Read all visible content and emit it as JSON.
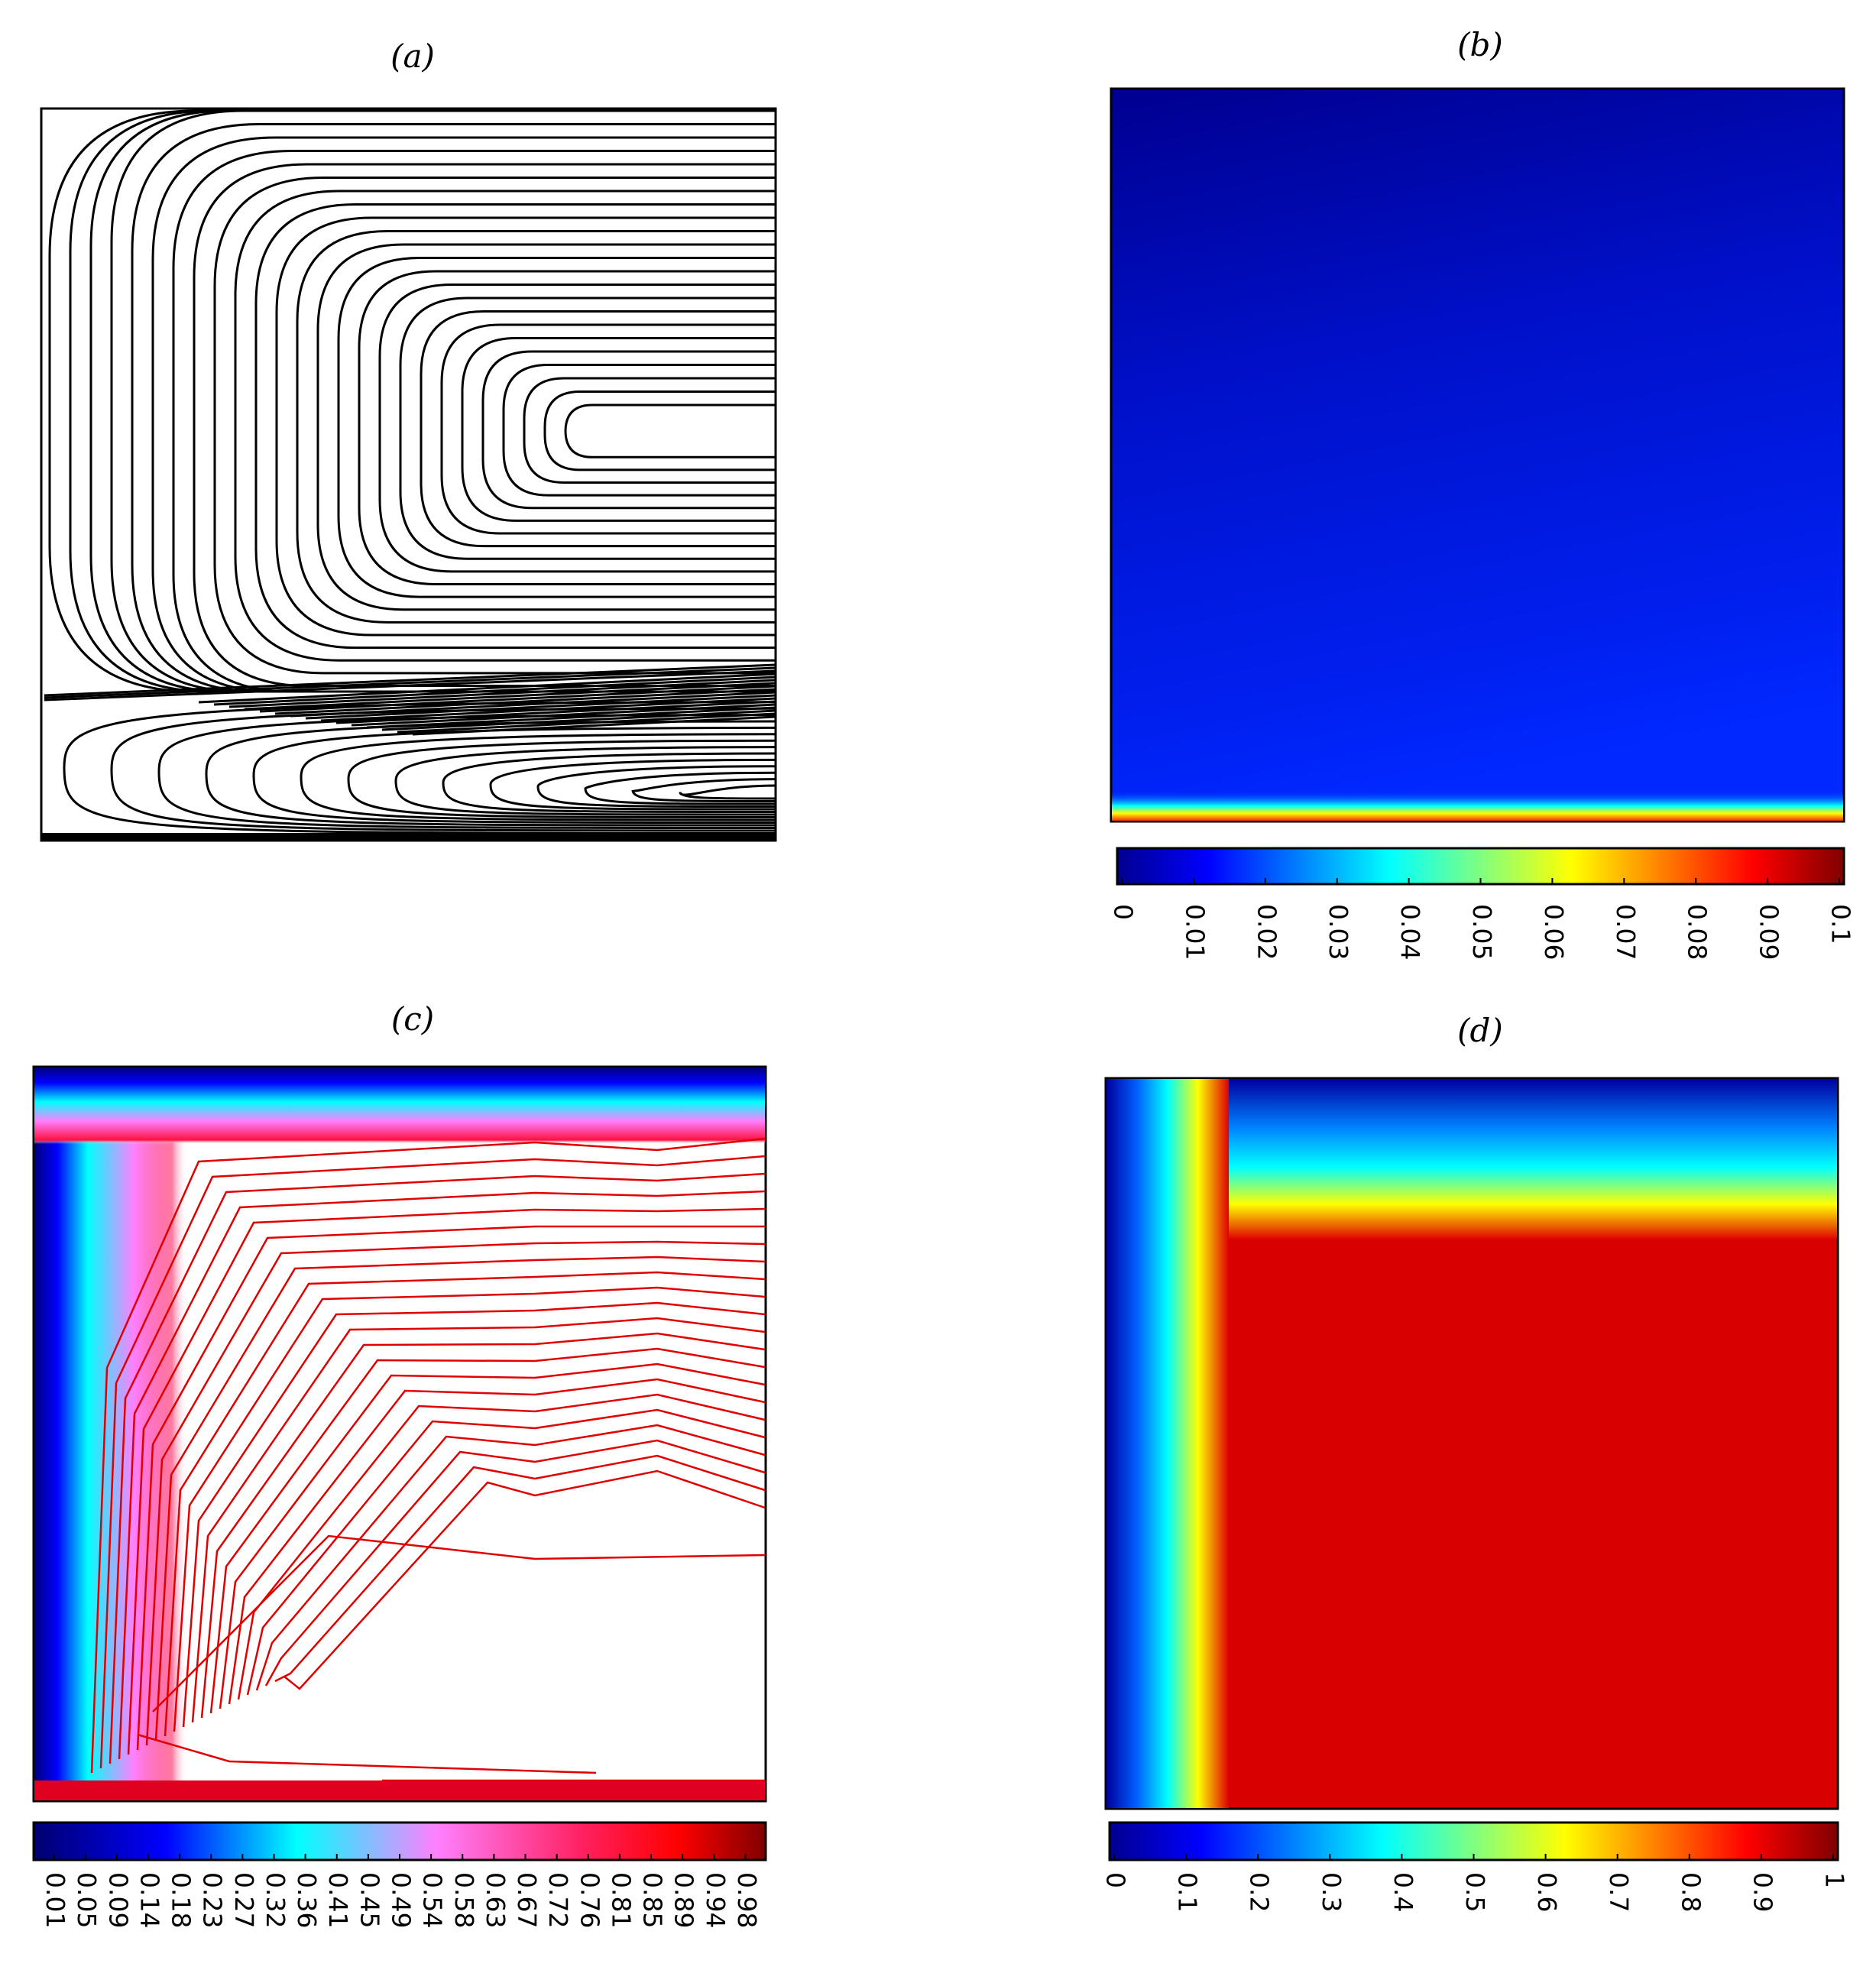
{
  "panels": [
    {
      "label": "(a)"
    },
    {
      "label": "(b)",
      "colorbar": {
        "ticks": [
          0,
          0.01,
          0.02,
          0.03,
          0.04,
          0.05,
          0.06,
          0.07,
          0.08,
          0.09,
          0.1
        ]
      }
    },
    {
      "label": "(c)",
      "colorbar": {
        "ticks": [
          0.01,
          0.05,
          0.09,
          0.14,
          0.18,
          0.23,
          0.27,
          0.32,
          0.36,
          0.41,
          0.45,
          0.49,
          0.54,
          0.58,
          0.63,
          0.67,
          0.72,
          0.76,
          0.81,
          0.85,
          0.89,
          0.94,
          0.98
        ]
      }
    },
    {
      "label": "(d)",
      "colorbar": {
        "ticks": [
          0,
          0.1,
          0.2,
          0.3,
          0.4,
          0.5,
          0.6,
          0.7,
          0.8,
          0.9,
          1
        ]
      }
    }
  ]
}
